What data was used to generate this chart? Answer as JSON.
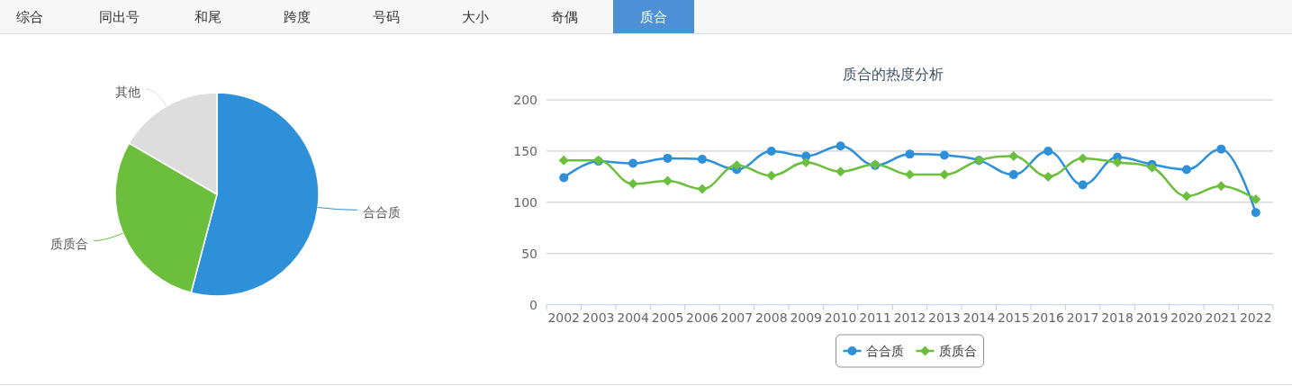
{
  "chart_data": [
    {
      "type": "other",
      "categories": [
        "综合",
        "同出号",
        "和尾",
        "跨度",
        "号码",
        "大小",
        "奇偶",
        "质合"
      ],
      "colors": [
        "#f7f7f7",
        "#f7f7f7",
        "#f7f7f7",
        "#f7f7f7",
        "#f7f7f7",
        "#f7f7f7",
        "#f7f7f7",
        "#4d90d6"
      ]
    },
    {
      "type": "pie",
      "categories": [
        "合合质",
        "质质合",
        "其他"
      ],
      "values": [
        54.1,
        29.3,
        16.6
      ],
      "colors": [
        "#2e90d9",
        "#6cbf3c",
        "#dddddd"
      ]
    },
    {
      "type": "line",
      "title": "质合的热度分析",
      "categories": [
        "2002",
        "2003",
        "2004",
        "2005",
        "2006",
        "2007",
        "2008",
        "2009",
        "2010",
        "2011",
        "2012",
        "2013",
        "2014",
        "2015",
        "2016",
        "2017",
        "2018",
        "2019",
        "2020",
        "2021",
        "2022"
      ],
      "series": [
        {
          "name": "合合质",
          "color": "#2e90d9",
          "marker": "circle",
          "values": [
            124,
            140,
            138,
            143,
            142,
            132,
            150,
            145,
            155,
            136,
            147,
            146,
            141,
            127,
            150,
            117,
            144,
            137,
            132,
            152,
            90
          ]
        },
        {
          "name": "质质合",
          "color": "#6cbf3c",
          "marker": "diamond",
          "values": [
            141,
            141,
            118,
            121,
            113,
            136,
            126,
            139,
            130,
            137,
            127,
            127,
            141,
            145,
            125,
            143,
            139,
            134,
            106,
            116,
            103
          ]
        }
      ],
      "ylim": [
        0,
        200
      ],
      "yticks": [
        0,
        50,
        100,
        150,
        200
      ],
      "grid": "y",
      "legend": "bottom"
    }
  ]
}
